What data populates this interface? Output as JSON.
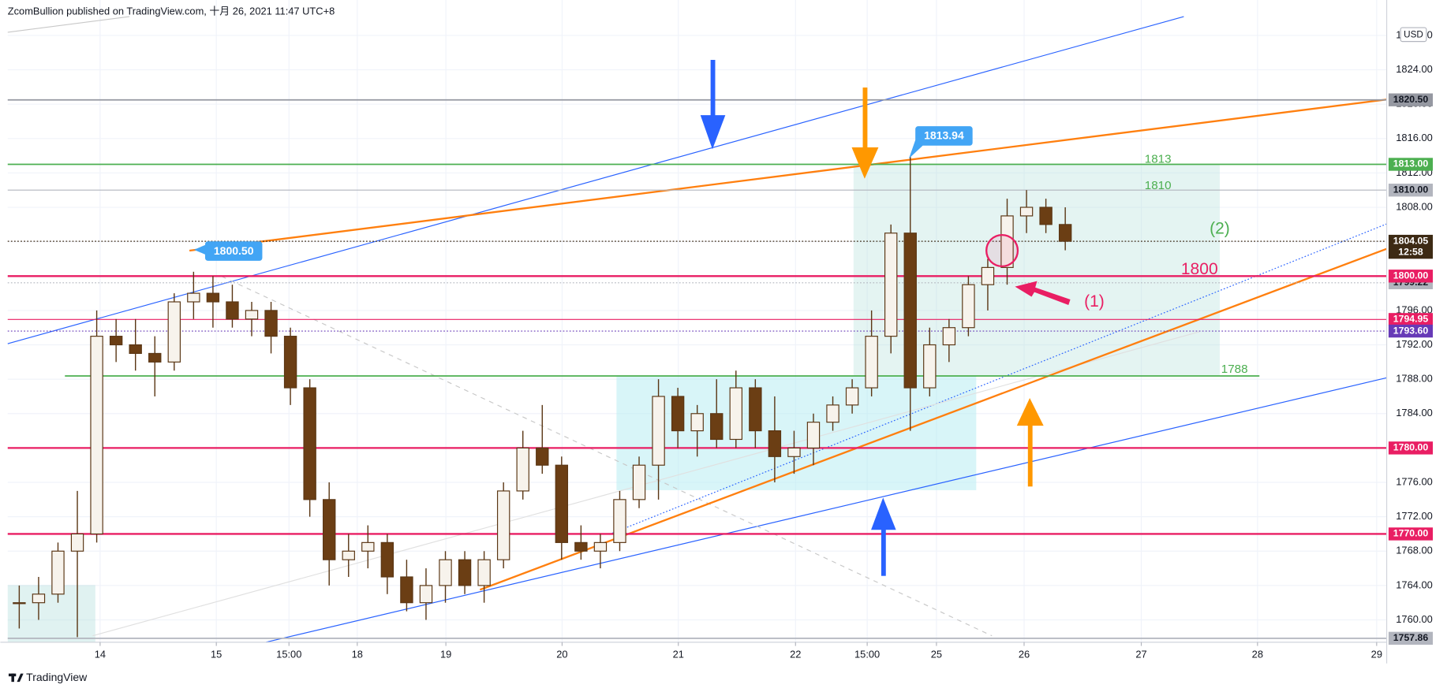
{
  "chart_data": {
    "type": "candlestick",
    "header": "ZcomBullion published on TradingView.com, 十月 26, 2021 11:47 UTC+8",
    "footer": "TradingView",
    "currency": "USD",
    "countdown": "12:58",
    "grid": true,
    "up_color": "#f7f3ec",
    "down_color": "#6b3e14",
    "wick_color": "#5a3614",
    "xlim": [
      0,
      284.76
    ],
    "ylim": [
      1757.4,
      1831.26
    ],
    "xticks": [
      {
        "value": 18.7,
        "label": "14"
      },
      {
        "value": 42.7,
        "label": "15"
      },
      {
        "value": 57.7,
        "label": "15:00"
      },
      {
        "value": 71.8,
        "label": "18"
      },
      {
        "value": 90.1,
        "label": "19"
      },
      {
        "value": 114.1,
        "label": "20"
      },
      {
        "value": 138.1,
        "label": "21"
      },
      {
        "value": 162.3,
        "label": "22"
      },
      {
        "value": 177.1,
        "label": "15:00"
      },
      {
        "value": 191.4,
        "label": "25"
      },
      {
        "value": 209.5,
        "label": "26"
      },
      {
        "value": 233.7,
        "label": "27"
      },
      {
        "value": 257.7,
        "label": "28"
      },
      {
        "value": 282.3,
        "label": "29"
      }
    ],
    "yticks": [
      {
        "value": 1760,
        "label": "1760.00"
      },
      {
        "value": 1764,
        "label": "1764.00"
      },
      {
        "value": 1768,
        "label": "1768.00"
      },
      {
        "value": 1772,
        "label": "1772.00"
      },
      {
        "value": 1776,
        "label": "1776.00"
      },
      {
        "value": 1780,
        "label": "1780.00"
      },
      {
        "value": 1784,
        "label": "1784.00"
      },
      {
        "value": 1788,
        "label": "1788.00"
      },
      {
        "value": 1792,
        "label": "1792.00"
      },
      {
        "value": 1796,
        "label": "1796.00"
      },
      {
        "value": 1800,
        "label": "1800.00"
      },
      {
        "value": 1804,
        "label": "1804.00"
      },
      {
        "value": 1808,
        "label": "1808.00"
      },
      {
        "value": 1812,
        "label": "1812.00"
      },
      {
        "value": 1816,
        "label": "1816.00"
      },
      {
        "value": 1820,
        "label": "1820.00"
      },
      {
        "value": 1824,
        "label": "1824.00"
      },
      {
        "value": 1828,
        "label": "1828.00"
      }
    ],
    "x": [
      2,
      6,
      10,
      14,
      18,
      22,
      26,
      30,
      34,
      38,
      42,
      46,
      50,
      54,
      58,
      62,
      66,
      70,
      74,
      78,
      82,
      86,
      90,
      94,
      98,
      102,
      106,
      110,
      114,
      118,
      122,
      126,
      130,
      134,
      138,
      142,
      146,
      150,
      154,
      158,
      162,
      166,
      170,
      174,
      178,
      182,
      186,
      190,
      194,
      198,
      202,
      206,
      210,
      214,
      218
    ],
    "open": [
      1762,
      1762,
      1763,
      1768,
      1770,
      1793,
      1792,
      1791,
      1790,
      1797,
      1798,
      1797,
      1795,
      1796,
      1793,
      1787,
      1774,
      1767,
      1768,
      1769,
      1765,
      1762,
      1764,
      1767,
      1764,
      1767,
      1775,
      1780,
      1778,
      1769,
      1768,
      1769,
      1774,
      1778,
      1786,
      1782,
      1784,
      1781,
      1787,
      1782,
      1779,
      1780,
      1783,
      1785,
      1787,
      1793,
      1805,
      1787,
      1792,
      1794,
      1799,
      1801,
      1807,
      1808,
      1806
    ],
    "high": [
      1764,
      1765,
      1769,
      1775,
      1796,
      1795,
      1795,
      1793,
      1798,
      1800.5,
      1800,
      1799,
      1797,
      1797,
      1794,
      1788,
      1776,
      1770,
      1771,
      1770,
      1767,
      1766,
      1768,
      1768,
      1768,
      1776,
      1782,
      1785,
      1779,
      1771,
      1770,
      1775,
      1779,
      1788,
      1787,
      1785,
      1788,
      1789,
      1788,
      1786,
      1782,
      1784,
      1786,
      1788,
      1796,
      1806,
      1813.94,
      1794,
      1795,
      1800,
      1802,
      1809,
      1810,
      1809,
      1808
    ],
    "low": [
      1759,
      1760,
      1762,
      1758,
      1769,
      1790,
      1789,
      1786,
      1789,
      1795,
      1794,
      1794,
      1793,
      1791,
      1785,
      1772,
      1764,
      1765,
      1766,
      1763,
      1761,
      1760,
      1762,
      1763,
      1762,
      1766,
      1774,
      1777,
      1767,
      1767,
      1766,
      1768,
      1773,
      1774,
      1780,
      1779,
      1780,
      1780,
      1780,
      1776,
      1777,
      1778,
      1782,
      1784,
      1786,
      1791,
      1782,
      1786,
      1790,
      1793,
      1796,
      1799,
      1805,
      1805,
      1803
    ],
    "close": [
      1762,
      1763,
      1768,
      1770,
      1793,
      1792,
      1791,
      1790,
      1797,
      1798,
      1797,
      1795,
      1796,
      1793,
      1787,
      1774,
      1767,
      1768,
      1769,
      1765,
      1762,
      1764,
      1767,
      1764,
      1767,
      1775,
      1780,
      1778,
      1769,
      1768,
      1769,
      1774,
      1778,
      1786,
      1782,
      1784,
      1781,
      1787,
      1782,
      1779,
      1780,
      1783,
      1785,
      1787,
      1793,
      1805,
      1787,
      1792,
      1794,
      1799,
      1801,
      1807,
      1808,
      1806,
      1804.05
    ],
    "levels": [
      {
        "value": 1820.5,
        "label": "1820.50",
        "color": "#9598a1",
        "style": "solid"
      },
      {
        "value": 1813,
        "label": "1813.00",
        "color": "#4caf50",
        "style": "solid"
      },
      {
        "value": 1810,
        "label": "1810.00",
        "color": "#b2b5be",
        "style": "thin"
      },
      {
        "value": 1804.05,
        "label": "1804.05",
        "color": "#3d2a14",
        "style": "dotted"
      },
      {
        "value": 1799.22,
        "label": "1799.22",
        "color": "#b2b5be",
        "style": "dotted"
      },
      {
        "value": 1800,
        "label": "1800.00",
        "color": "#e91e63",
        "style": "bold"
      },
      {
        "value": 1794.95,
        "label": "1794.95",
        "color": "#e91e63",
        "style": "thin"
      },
      {
        "value": 1793.6,
        "label": "1793.60",
        "color": "#673ab7",
        "style": "dotted"
      },
      {
        "value": 1780,
        "label": "1780.00",
        "color": "#e91e63",
        "style": "bold"
      },
      {
        "value": 1770,
        "label": "1770.00",
        "color": "#e91e63",
        "style": "bold"
      },
      {
        "value": 1757.86,
        "label": "1757.86",
        "color": "#b2b5be",
        "style": "solid"
      }
    ],
    "callouts": [
      {
        "value": 1800.5,
        "label": "1800.50"
      },
      {
        "value": 1813.94,
        "label": "1813.94"
      }
    ],
    "annotations": [
      "1813",
      "1810",
      "(2)",
      "1800",
      "(1)",
      "1788"
    ]
  }
}
